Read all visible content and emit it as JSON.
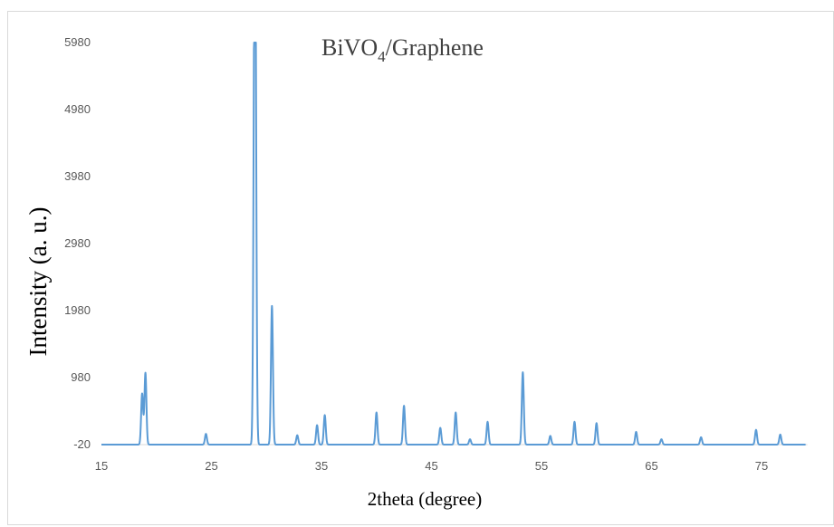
{
  "chart_data": {
    "type": "line",
    "title_main": "BiVO",
    "title_sub": "4",
    "title_rest": "/Graphene",
    "xlabel": "2theta (degree)",
    "ylabel": "Intensity (a. u.)",
    "xlim": [
      15,
      80
    ],
    "ylim": [
      -20,
      5980
    ],
    "x_ticks": [
      15,
      25,
      35,
      45,
      55,
      65,
      75
    ],
    "y_ticks": [
      -20,
      980,
      1980,
      2980,
      3980,
      4980,
      5980
    ],
    "x_tick_labels": [
      "15",
      "25",
      "35",
      "45",
      "55",
      "65",
      "75"
    ],
    "y_tick_labels": [
      "-20",
      "980",
      "1980",
      "2980",
      "3980",
      "4980",
      "5980"
    ],
    "grid": false,
    "legend": "none",
    "line_color": "#5b9bd5",
    "x_range_data": [
      15,
      79
    ],
    "baseline": -20,
    "series": [
      {
        "peaks": [
          {
            "x": 18.7,
            "y": 740
          },
          {
            "x": 19.0,
            "y": 1050
          },
          {
            "x": 24.5,
            "y": 140
          },
          {
            "x": 28.9,
            "y": 4850
          },
          {
            "x": 29.0,
            "y": 5000
          },
          {
            "x": 30.5,
            "y": 2050
          },
          {
            "x": 32.8,
            "y": 120
          },
          {
            "x": 34.6,
            "y": 270
          },
          {
            "x": 35.3,
            "y": 420
          },
          {
            "x": 40.0,
            "y": 460
          },
          {
            "x": 42.5,
            "y": 560
          },
          {
            "x": 45.8,
            "y": 230
          },
          {
            "x": 47.2,
            "y": 460
          },
          {
            "x": 48.5,
            "y": 60
          },
          {
            "x": 50.1,
            "y": 320
          },
          {
            "x": 53.3,
            "y": 1060
          },
          {
            "x": 55.8,
            "y": 110
          },
          {
            "x": 58.0,
            "y": 320
          },
          {
            "x": 60.0,
            "y": 300
          },
          {
            "x": 63.6,
            "y": 170
          },
          {
            "x": 65.9,
            "y": 60
          },
          {
            "x": 69.5,
            "y": 90
          },
          {
            "x": 74.5,
            "y": 200
          },
          {
            "x": 76.7,
            "y": 130
          }
        ]
      }
    ]
  }
}
